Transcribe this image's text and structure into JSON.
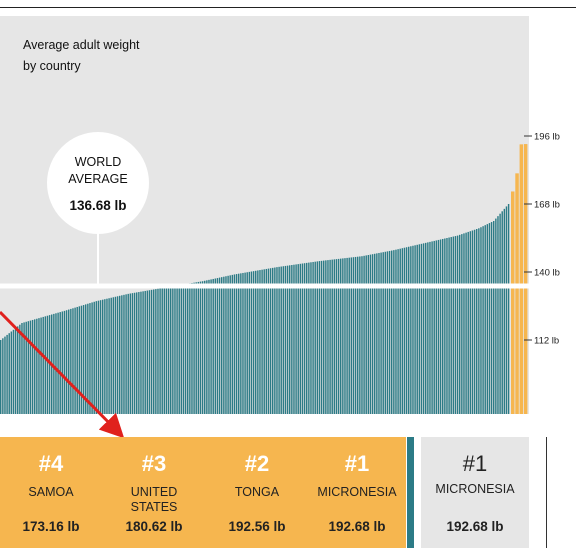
{
  "chart_data": {
    "type": "bar",
    "title": "Average adult weight\nby country",
    "title_lines": [
      "Average adult weight",
      "by country"
    ],
    "y_unit": "lb",
    "ylim": [
      82,
      196
    ],
    "y_ticks": [
      {
        "value": 196,
        "label": "196 lb"
      },
      {
        "value": 168,
        "label": "168 lb"
      },
      {
        "value": 140,
        "label": "140 lb"
      },
      {
        "value": 112,
        "label": "112 lb"
      }
    ],
    "reference_line": {
      "value": 136.68,
      "label_lines": [
        "WORLD",
        "AVERAGE"
      ],
      "value_label": "136.68 lb"
    },
    "profile": [
      [
        0,
        112
      ],
      [
        10,
        119
      ],
      [
        20,
        121.5
      ],
      [
        30,
        124
      ],
      [
        45,
        128
      ],
      [
        60,
        131
      ],
      [
        80,
        134
      ],
      [
        95,
        136.2
      ],
      [
        110,
        139
      ],
      [
        120,
        140.5
      ],
      [
        130,
        142
      ],
      [
        150,
        144.5
      ],
      [
        170,
        146.5
      ],
      [
        185,
        149
      ],
      [
        200,
        152
      ],
      [
        215,
        155
      ],
      [
        225,
        158
      ],
      [
        232,
        161
      ],
      [
        236,
        165
      ],
      [
        239,
        168
      ]
    ],
    "values_top": [
      173.16,
      180.62,
      192.56,
      192.68
    ],
    "colors": {
      "bar": "#2c7b86",
      "highlight": "#f6b64f",
      "background": "#e6e6e6",
      "arrow": "#e0211d"
    }
  },
  "ranks": [
    {
      "rank": "#4",
      "country": "SAMOA",
      "weight": "173.16 lb"
    },
    {
      "rank": "#3",
      "country": "UNITED\nSTATES",
      "country_lines": [
        "UNITED",
        "STATES"
      ],
      "weight": "180.62 lb"
    },
    {
      "rank": "#2",
      "country": "TONGA",
      "weight": "192.56 lb"
    },
    {
      "rank": "#1",
      "country": "MICRONESIA",
      "weight": "192.68 lb"
    }
  ],
  "side_panel": {
    "rank": "#1",
    "country": "MICRONESIA",
    "weight": "192.68 lb"
  }
}
